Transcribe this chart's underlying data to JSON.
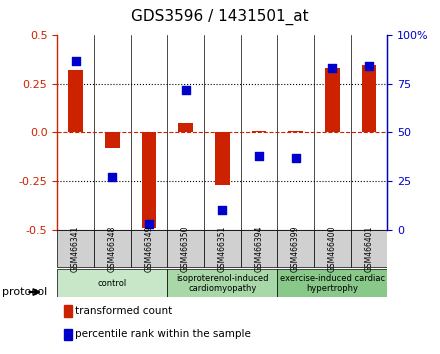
{
  "title": "GDS3596 / 1431501_at",
  "samples": [
    "GSM466341",
    "GSM466348",
    "GSM466349",
    "GSM466350",
    "GSM466351",
    "GSM466394",
    "GSM466399",
    "GSM466400",
    "GSM466401"
  ],
  "transformed_count": [
    0.32,
    -0.08,
    -0.49,
    0.05,
    -0.27,
    0.01,
    0.01,
    0.33,
    0.35
  ],
  "percentile_rank": [
    87,
    27,
    3,
    72,
    10,
    38,
    37,
    83,
    84
  ],
  "groups": [
    {
      "label": "control",
      "start": 0,
      "end": 3,
      "color": "#c8e6c8"
    },
    {
      "label": "isoproterenol-induced\ncardiomyopathy",
      "start": 3,
      "end": 6,
      "color": "#a8d8a8"
    },
    {
      "label": "exercise-induced cardiac\nhypertrophy",
      "start": 6,
      "end": 9,
      "color": "#88c888"
    }
  ],
  "bar_color": "#cc2200",
  "dot_color": "#0000cc",
  "ylim_left": [
    -0.5,
    0.5
  ],
  "ylim_right": [
    0,
    100
  ],
  "yticks_left": [
    -0.5,
    -0.25,
    0.0,
    0.25,
    0.5
  ],
  "yticks_right": [
    0,
    25,
    50,
    75,
    100
  ],
  "ytick_labels_right": [
    "0",
    "25",
    "50",
    "75",
    "100%"
  ],
  "hlines": [
    -0.25,
    0.0,
    0.25
  ],
  "hlines_style": {
    "0.0": "dashed",
    "-0.25": "dotted",
    "0.25": "dotted"
  },
  "background_color": "#ffffff",
  "plot_bg_color": "#ffffff",
  "legend_items": [
    {
      "label": "transformed count",
      "color": "#cc2200"
    },
    {
      "label": "percentile rank within the sample",
      "color": "#0000cc"
    }
  ],
  "protocol_label": "protocol"
}
